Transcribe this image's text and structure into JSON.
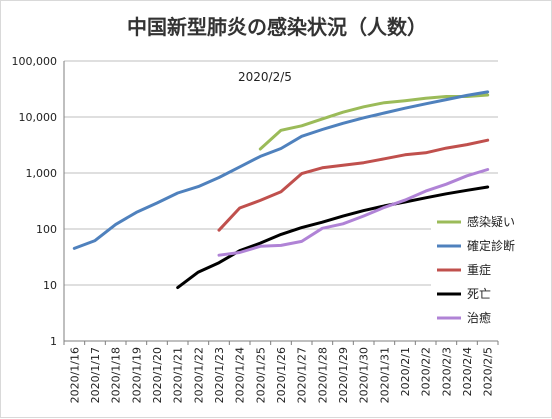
{
  "chart_data": {
    "type": "line",
    "title": "中国新型肺炎の感染状況（人数）",
    "annotation": "2020/2/5",
    "y_scale": "log",
    "ylim": [
      1,
      100000
    ],
    "y_ticks": [
      "1",
      "10",
      "100",
      "1,000",
      "10,000",
      "100,000"
    ],
    "grid": true,
    "legend_position": "right",
    "categories": [
      "2020/1/16",
      "2020/1/17",
      "2020/1/18",
      "2020/1/19",
      "2020/1/20",
      "2020/1/21",
      "2020/1/22",
      "2020/1/23",
      "2020/1/24",
      "2020/1/25",
      "2020/1/26",
      "2020/1/27",
      "2020/1/28",
      "2020/1/29",
      "2020/1/30",
      "2020/1/31",
      "2020/2/1",
      "2020/2/2",
      "2020/2/3",
      "2020/2/4",
      "2020/2/5"
    ],
    "series": [
      {
        "name": "感染疑い",
        "color": "#9bbb59",
        "values": [
          null,
          null,
          null,
          null,
          null,
          null,
          null,
          null,
          null,
          2684,
          5794,
          6973,
          9239,
          12167,
          15238,
          17988,
          19544,
          21558,
          23214,
          23260,
          24702
        ]
      },
      {
        "name": "確定診断",
        "color": "#4f81bd",
        "values": [
          45,
          62,
          121,
          198,
          291,
          440,
          571,
          830,
          1287,
          1975,
          2744,
          4515,
          5974,
          7711,
          9692,
          11791,
          14380,
          17205,
          20438,
          24324,
          28018
        ]
      },
      {
        "name": "重症",
        "color": "#c0504d",
        "values": [
          null,
          null,
          null,
          null,
          null,
          null,
          null,
          95,
          237,
          324,
          461,
          976,
          1239,
          1370,
          1527,
          1795,
          2110,
          2296,
          2788,
          3219,
          3859
        ]
      },
      {
        "name": "死亡",
        "color": "#000000",
        "values": [
          null,
          null,
          null,
          null,
          null,
          9,
          17,
          25,
          41,
          56,
          80,
          106,
          132,
          170,
          213,
          259,
          304,
          361,
          425,
          490,
          563
        ]
      },
      {
        "name": "治癒",
        "color": "#b083d6",
        "values": [
          null,
          null,
          null,
          null,
          null,
          null,
          null,
          34,
          38,
          49,
          51,
          60,
          103,
          124,
          171,
          243,
          328,
          475,
          632,
          892,
          1153
        ]
      }
    ]
  }
}
